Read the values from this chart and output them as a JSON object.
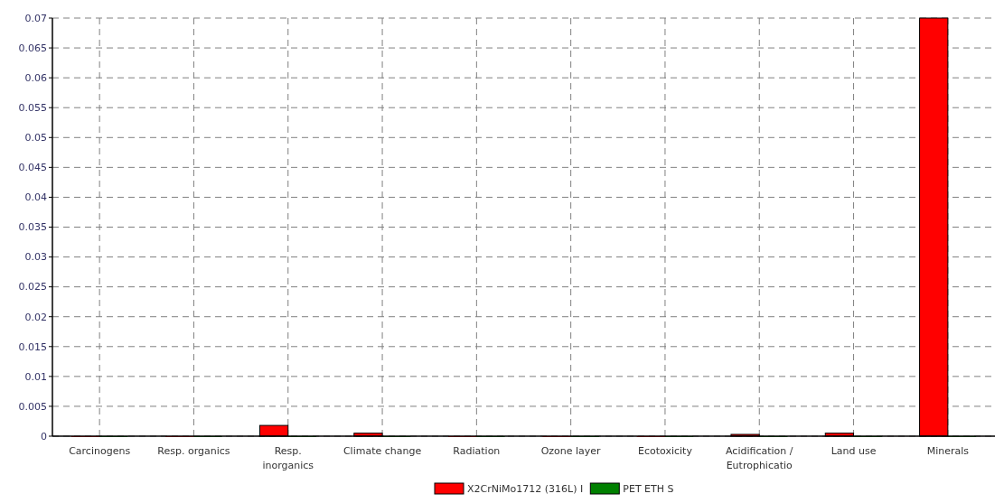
{
  "chart_data": {
    "type": "bar",
    "categories": [
      "Carcinogens",
      "Resp. organics",
      "Resp. inorganics",
      "Climate change",
      "Radiation",
      "Ozone layer",
      "Ecotoxicity",
      "Acidification / Eutrophicatio",
      "Land use",
      "Minerals"
    ],
    "series": [
      {
        "name": "X2CrNiMo1712 (316L) I",
        "color": "#ff0000",
        "values": [
          0,
          0,
          0.0018,
          0.0005,
          0,
          0,
          0,
          0.0003,
          0.0005,
          0.07
        ]
      },
      {
        "name": "PET ETH S",
        "color": "#008000",
        "values": [
          0,
          0,
          0,
          0,
          0,
          0,
          0,
          0,
          0,
          0
        ]
      }
    ],
    "ylim": [
      0,
      0.07
    ],
    "yticks": [
      0,
      0.005,
      0.01,
      0.015,
      0.02,
      0.025,
      0.03,
      0.035,
      0.04,
      0.045,
      0.05,
      0.055,
      0.06,
      0.065,
      0.07
    ],
    "grid": true,
    "legend": "bottom"
  }
}
